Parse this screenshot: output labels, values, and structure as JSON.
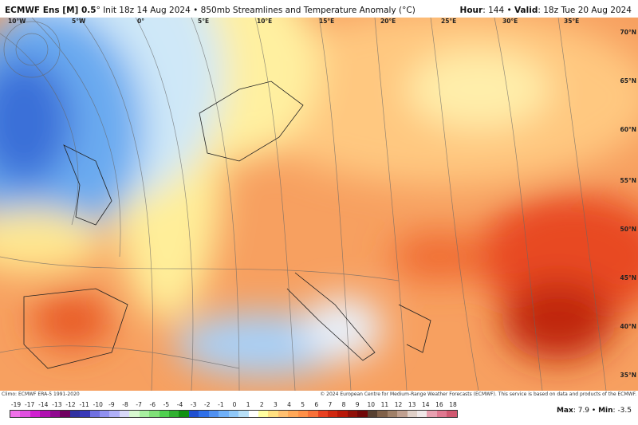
{
  "header": {
    "model": "ECMWF Ens [M] 0.5",
    "deg": "°",
    "init": "Init 18z 14 Aug 2024",
    "sep": " • ",
    "product": "850mb Streamlines and Temperature Anomaly (°C)",
    "hour_label": "Hour",
    "hour": "144",
    "valid_label": "Valid",
    "valid": "18z Tue 20 Aug 2024"
  },
  "lon_labels": [
    "10°W",
    "5°W",
    "0°",
    "5°E",
    "10°E",
    "15°E",
    "20°E",
    "25°E",
    "30°E",
    "35°E"
  ],
  "lat_labels": [
    "70°N",
    "65°N",
    "60°N",
    "55°N",
    "50°N",
    "45°N",
    "40°N",
    "35°N"
  ],
  "credit": {
    "climo": "Climo: ECMWF ERA-5 1991-2020",
    "copyright": "© 2024 European Centre for Medium-Range Weather Forecasts (ECMWF). This service is based on data and products of the ECMWF."
  },
  "colorbar": {
    "labels": [
      "-19",
      "-17",
      "-14",
      "-13",
      "-12",
      "-11",
      "-10",
      "-9",
      "-8",
      "-7",
      "-6",
      "-5",
      "-4",
      "-3",
      "-2",
      "-1",
      "0",
      "1",
      "2",
      "3",
      "4",
      "5",
      "6",
      "7",
      "8",
      "9",
      "10",
      "11",
      "12",
      "13",
      "14",
      "16",
      "18"
    ],
    "colors": [
      "#f070e8",
      "#e050e0",
      "#d020d0",
      "#b010b0",
      "#900890",
      "#700060",
      "#3030a0",
      "#3838b8",
      "#7070e0",
      "#9090f0",
      "#b0b0f8",
      "#d8d8f8",
      "#d8f8d0",
      "#a8f0a0",
      "#80e078",
      "#50d050",
      "#30b030",
      "#109010",
      "#2050d0",
      "#3070e8",
      "#5090f0",
      "#70b0f8",
      "#90c8f8",
      "#b8e0f8",
      "#ffffff",
      "#ffffa0",
      "#ffe080",
      "#ffc070",
      "#ffa858",
      "#ff9048",
      "#f87038",
      "#e84020",
      "#d02810",
      "#b81808",
      "#901008",
      "#700808",
      "#584030",
      "#806048",
      "#a08068",
      "#c0a090",
      "#e0d0c8",
      "#f0e8e8",
      "#e8a0b0",
      "#e07890",
      "#d05870"
    ]
  },
  "stats": {
    "max_label": "Max",
    "max": "7.9",
    "min_label": "Min",
    "min": "-3.5"
  }
}
